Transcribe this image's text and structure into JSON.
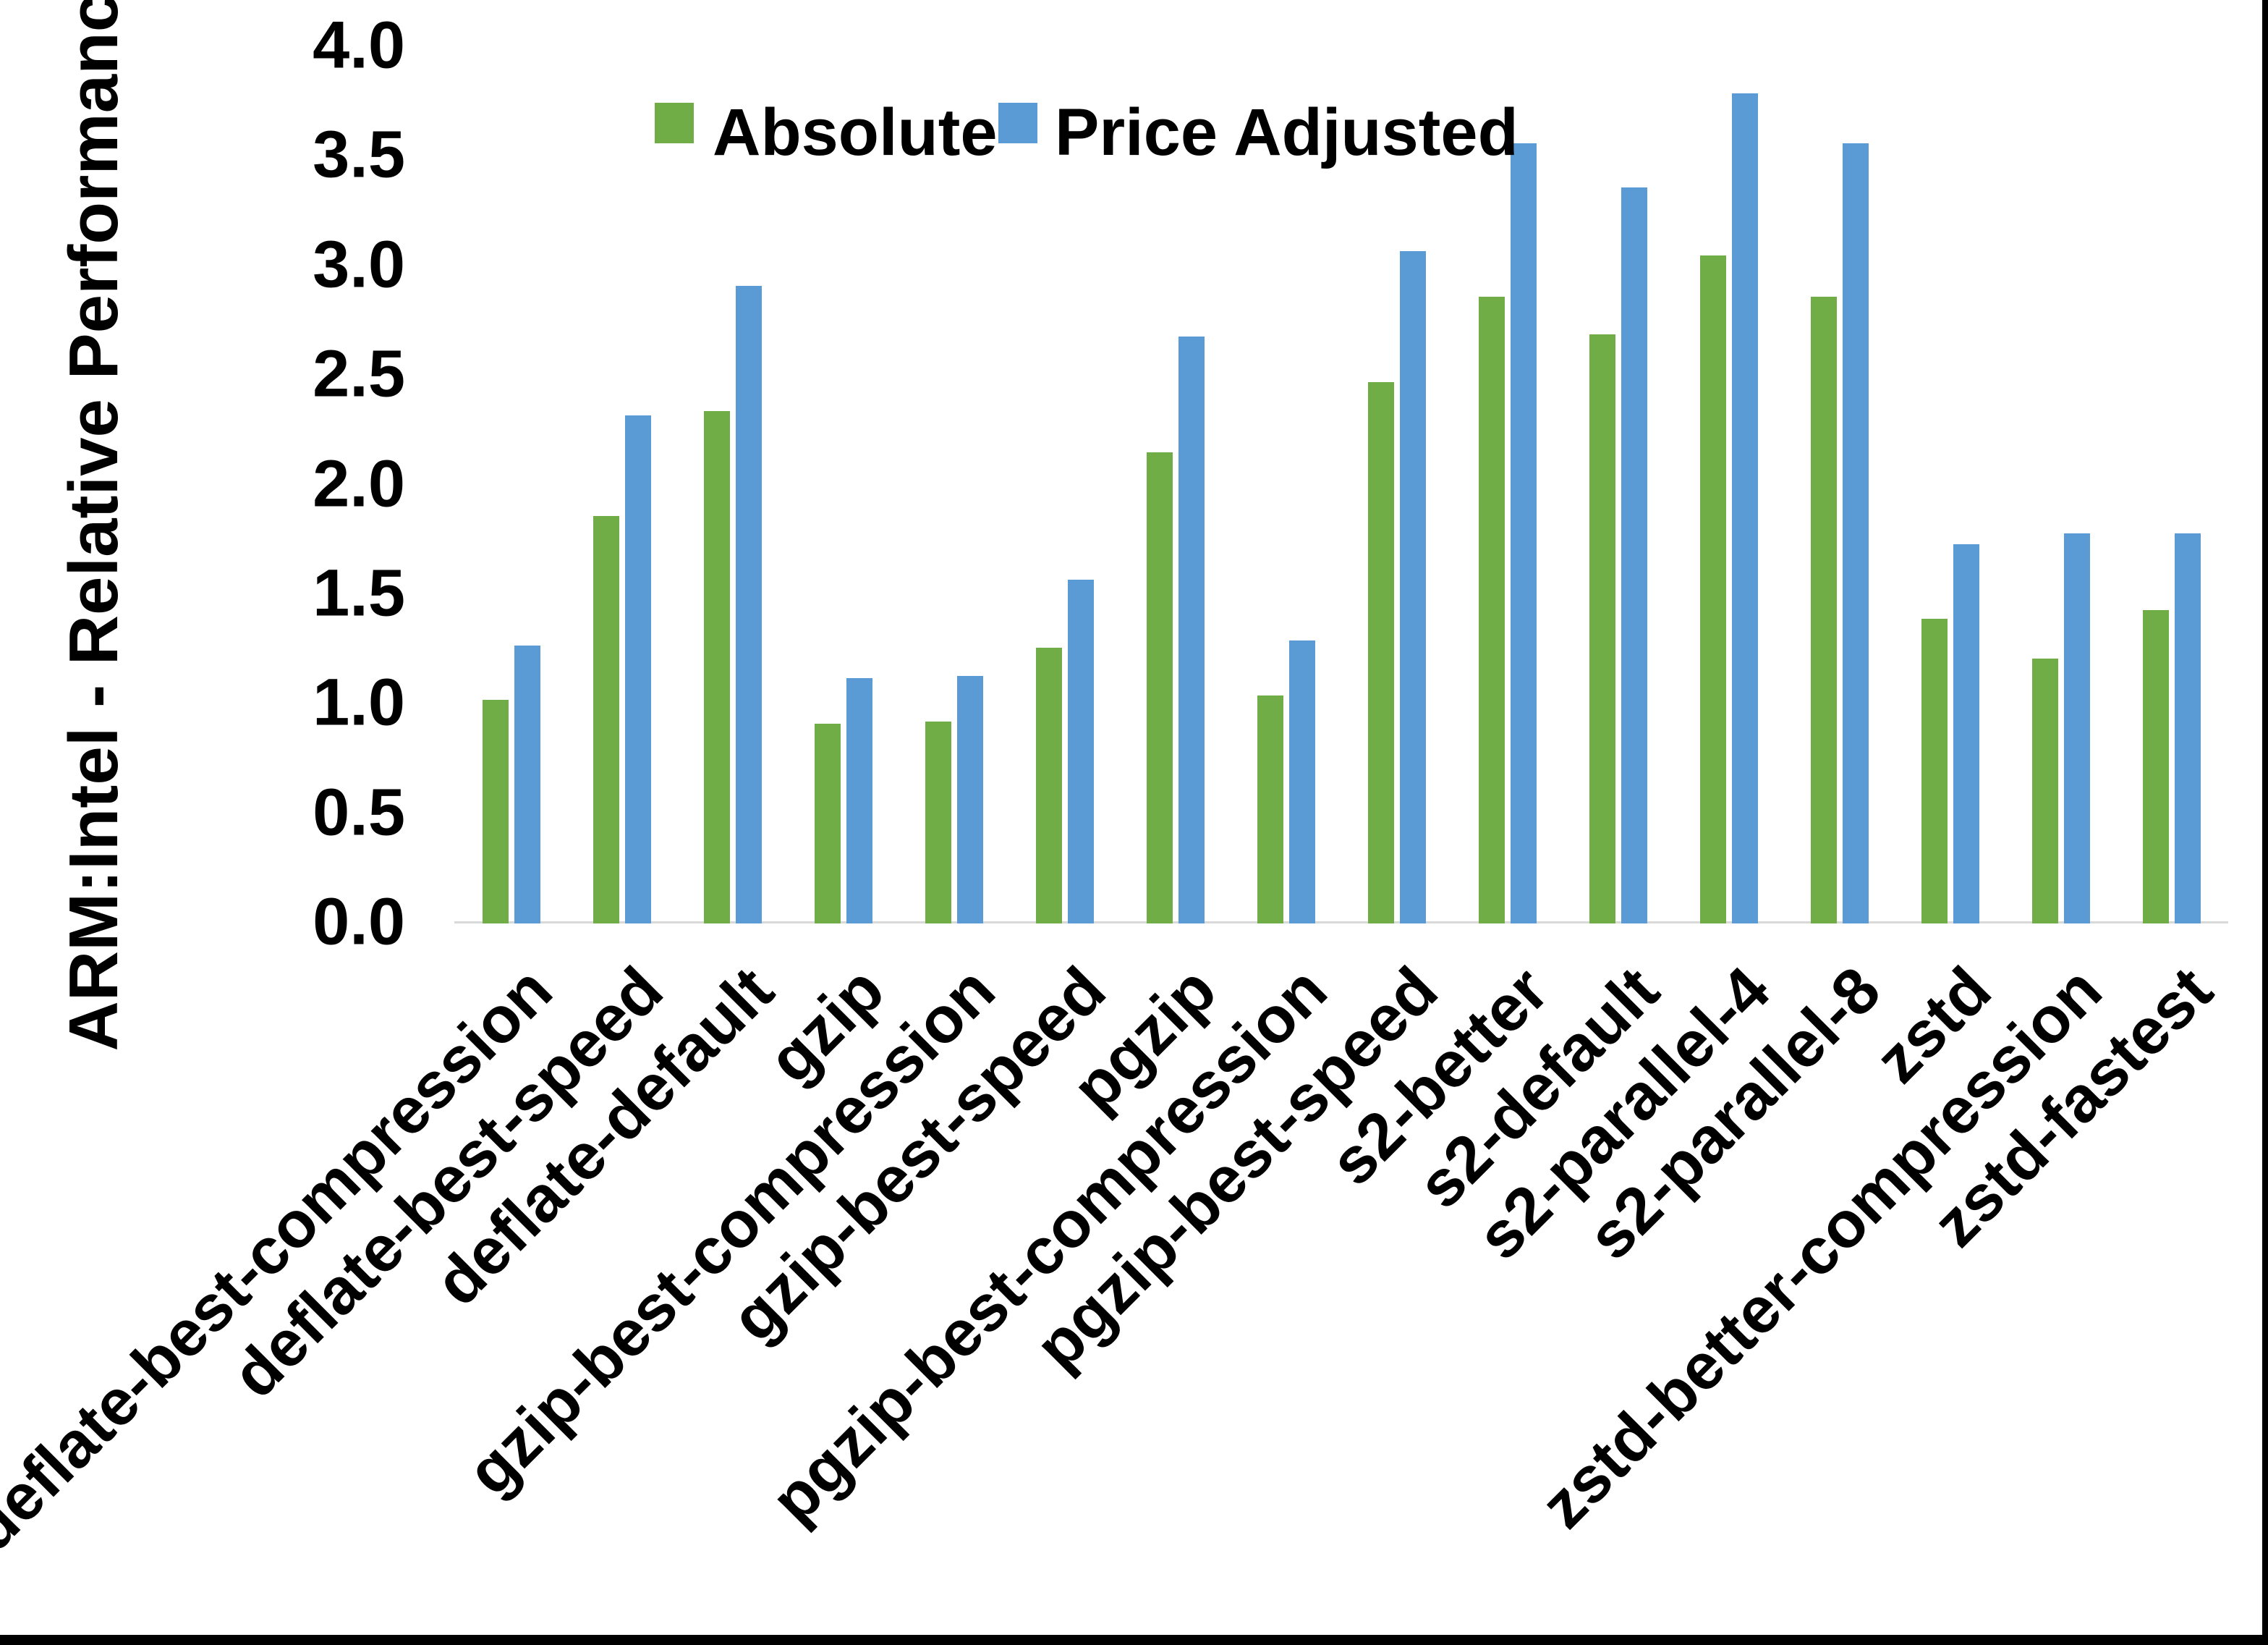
{
  "chart_data": {
    "type": "bar",
    "title": "",
    "ylabel": "ARM:Intel - Relative Performance",
    "xlabel": "",
    "ylim": [
      0.0,
      4.0
    ],
    "ytick_labels": [
      "0.0",
      "0.5",
      "1.0",
      "1.5",
      "2.0",
      "2.5",
      "3.0",
      "3.5",
      "4.0"
    ],
    "grid": false,
    "legend_position": "top-center",
    "categories": [
      "deflate-best-compression",
      "deflate-best-speed",
      "deflate-default",
      "gzip",
      "gzip-best-compression",
      "gzip-best-speed",
      "pgzip",
      "pgzip-best-compression",
      "pgzip-best-speed",
      "s2-better",
      "s2-default",
      "s2-parallel-4",
      "s2-parallel-8",
      "zstd",
      "zstd-better-compression",
      "zstd-fastest"
    ],
    "series": [
      {
        "name": "Absolute",
        "color": "#70AD47",
        "values": [
          1.02,
          1.86,
          2.34,
          0.91,
          0.92,
          1.26,
          2.15,
          1.04,
          2.47,
          2.86,
          2.69,
          3.05,
          2.86,
          1.39,
          1.21,
          1.43
        ]
      },
      {
        "name": "Price Adjusted",
        "color": "#5B9BD5",
        "values": [
          1.27,
          2.32,
          2.91,
          1.12,
          1.13,
          1.57,
          2.68,
          1.29,
          3.07,
          3.56,
          3.36,
          3.79,
          3.56,
          1.73,
          1.78,
          1.78
        ]
      }
    ]
  },
  "colors": {
    "background": "#FFFFFF",
    "axis_line": "#D9D9D9",
    "text": "#000000",
    "frame": "#000000"
  }
}
